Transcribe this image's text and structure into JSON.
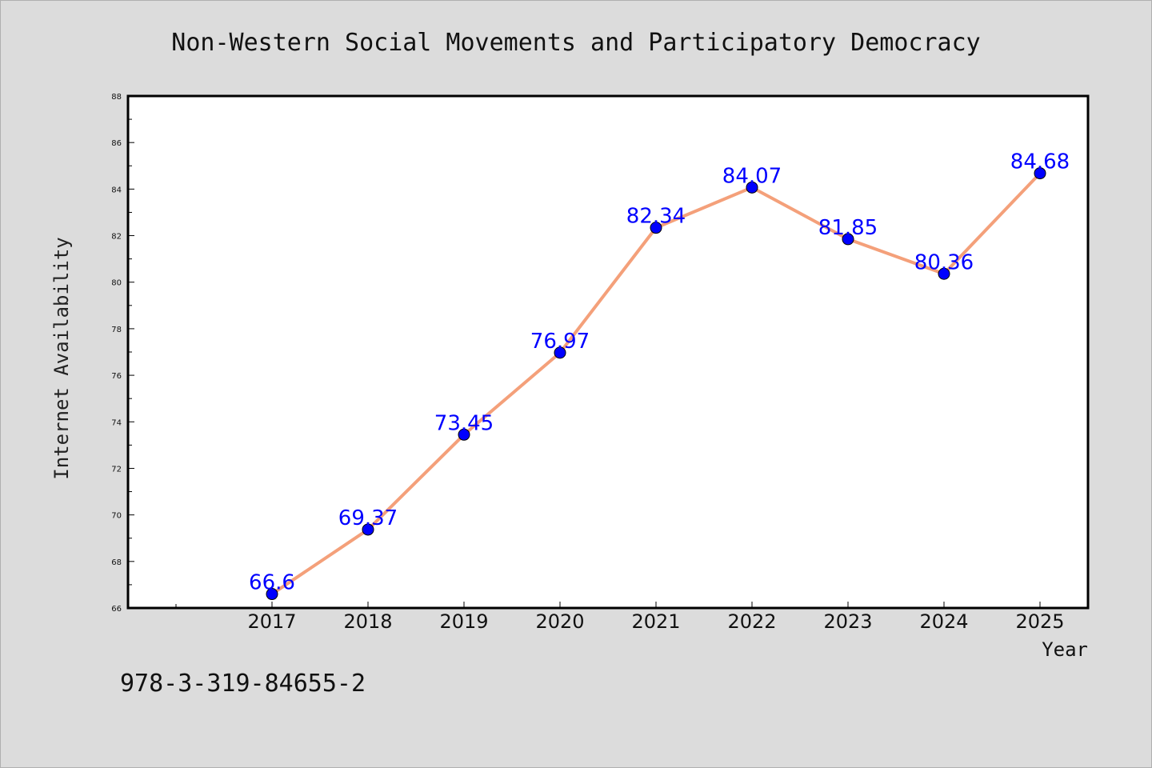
{
  "chart_data": {
    "type": "line",
    "title": "Non-Western Social Movements and Participatory Democracy",
    "xlabel": "Year",
    "ylabel": "Internet Availability",
    "categories": [
      "2017",
      "2018",
      "2019",
      "2020",
      "2021",
      "2022",
      "2023",
      "2024",
      "2025"
    ],
    "series": [
      {
        "values": [
          66.6,
          69.37,
          73.45,
          76.97,
          82.34,
          84.07,
          81.85,
          80.36,
          84.68
        ],
        "line_color": "#f4a07a",
        "marker_color": "#0000ff"
      }
    ],
    "data_labels": [
      "66.6",
      "69.37",
      "73.45",
      "76.97",
      "82.34",
      "84.07",
      "81.85",
      "80.36",
      "84.68"
    ],
    "data_label_color": "#0000ff",
    "ylim": [
      66,
      88
    ],
    "yticks": [
      66,
      68,
      70,
      72,
      74,
      76,
      78,
      80,
      82,
      84,
      86,
      88
    ],
    "ytick_labels": [
      "66",
      "68",
      "70",
      "72",
      "74",
      "76",
      "78",
      "80",
      "82",
      "84",
      "86",
      "88"
    ],
    "grid": false,
    "legend": "none"
  },
  "footer": {
    "isbn": "978-3-319-84655-2"
  },
  "colors": {
    "background": "#dcdcdc",
    "plot_background": "#ffffff",
    "axis": "#000000"
  }
}
